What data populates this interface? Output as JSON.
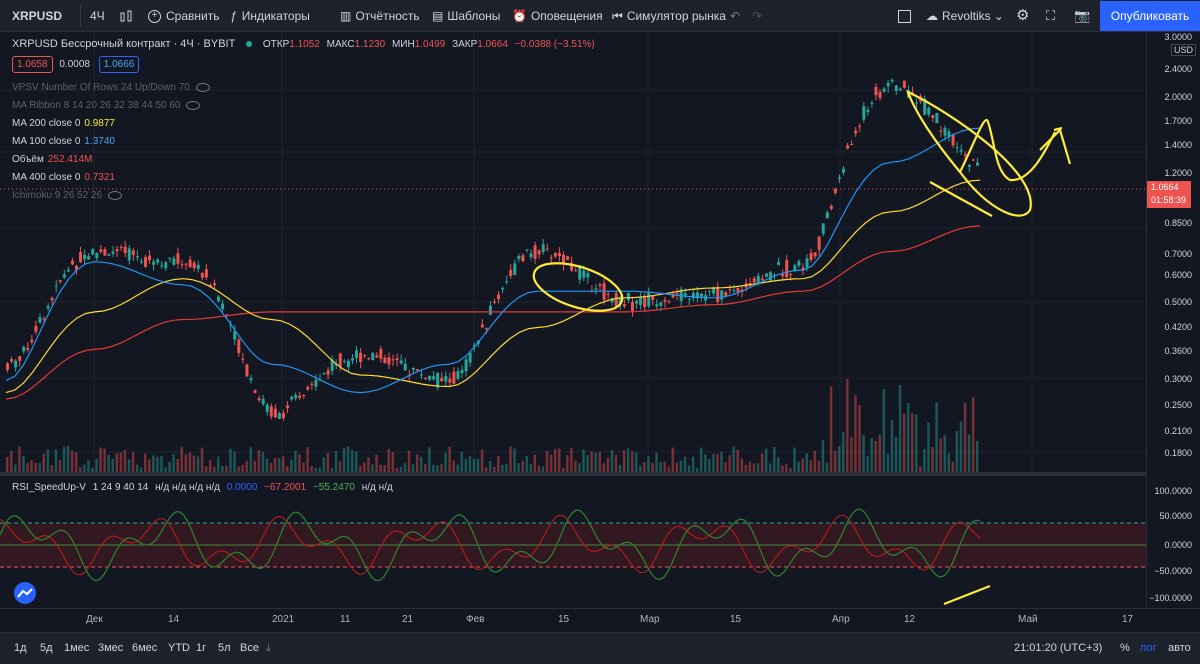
{
  "toolbar": {
    "symbol": "XRPUSD",
    "interval": "4Ч",
    "compare": "Сравнить",
    "indicators": "Индикаторы",
    "financials": "Отчётность",
    "templates": "Шаблоны",
    "alerts": "Оповещения",
    "replay": "Симулятор рынка",
    "layout_name": "Revoltiks",
    "publish": "Опубликовать"
  },
  "header": {
    "title": "XRPUSD Бессрочный контракт · 4Ч · BYBIT",
    "open_label": "ОТКР",
    "open": "1.1052",
    "high_label": "МАКС",
    "high": "1.1230",
    "low_label": "МИН",
    "low": "1.0499",
    "close_label": "ЗАКР",
    "close": "1.0664",
    "change": "−0.0388 (−3.51%)",
    "bid": "1.0658",
    "spread": "0.0008",
    "ask": "1.0666"
  },
  "indicators": [
    {
      "label": "VPSV Number Of Rows 24 Up/Down 70",
      "value": "",
      "hidden": true
    },
    {
      "label": "MA Ribbon 8 14 20 26 32 38 44 50 60",
      "value": "",
      "hidden": true
    },
    {
      "label": "MA 200 close 0",
      "value": "0.9877",
      "color": "#ffeb3b",
      "hidden": false
    },
    {
      "label": "MA 100 close 0",
      "value": "1.3740",
      "color": "#42a5f5",
      "hidden": false
    },
    {
      "label": "Объём",
      "value": "252.414M",
      "color": "#ef5350",
      "hidden": false
    },
    {
      "label": "MA 400 close 0",
      "value": "0.7321",
      "color": "#ef5350",
      "hidden": false
    },
    {
      "label": "Ichimoku 9 26 52 26",
      "value": "",
      "hidden": true
    }
  ],
  "price_axis": {
    "currency": "USD",
    "ticks": [
      "3.0000",
      "2.4000",
      "2.0000",
      "1.7000",
      "1.4000",
      "1.2000",
      "0.8500",
      "0.7000",
      "0.6000",
      "0.5000",
      "0.4200",
      "0.3600",
      "0.3000",
      "0.2500",
      "0.2100",
      "0.1800"
    ],
    "last_price": "1.0664",
    "countdown": "01:58:39"
  },
  "rsi": {
    "label": "RSI_SpeedUp-V",
    "params": "1 24 9 40 14",
    "na": "н/д н/д н/д н/д",
    "v1": "0.0000",
    "v2": "−67.2001",
    "v3": "−55.2470",
    "na2": "н/д н/д",
    "ticks": [
      "100.0000",
      "50.0000",
      "0.0000",
      "−50.0000",
      "−100.0000"
    ]
  },
  "time_axis": [
    "Дек",
    "14",
    "2021",
    "11",
    "21",
    "Фев",
    "15",
    "Мар",
    "15",
    "Апр",
    "12",
    "Май",
    "17"
  ],
  "bottom": {
    "ranges": [
      "1д",
      "5д",
      "1мес",
      "3мес",
      "6мес",
      "YTD",
      "1г",
      "5л",
      "Все"
    ],
    "clock": "21:01:20 (UTC+3)",
    "percent": "%",
    "log": "лог",
    "auto": "авто"
  },
  "chart_data": {
    "type": "line",
    "symbol": "XRPUSD",
    "y_scale": "log",
    "ylim": [
      0.16,
      3.0
    ],
    "x": [
      "Дек",
      "14",
      "2021",
      "11",
      "21",
      "Фев",
      "15",
      "Мар",
      "15",
      "Апр",
      "12",
      "Май"
    ],
    "series": [
      {
        "name": "MA 200 close 0",
        "values": [
          0.25,
          0.42,
          0.52,
          0.4,
          0.28,
          0.26,
          0.38,
          0.46,
          0.49,
          0.52,
          0.8,
          0.98
        ]
      },
      {
        "name": "MA 100 close 0",
        "values": [
          0.27,
          0.58,
          0.5,
          0.3,
          0.25,
          0.3,
          0.48,
          0.48,
          0.46,
          0.55,
          1.1,
          1.37
        ]
      },
      {
        "name": "MA 400 close 0",
        "values": [
          0.24,
          0.33,
          0.4,
          0.42,
          0.42,
          0.42,
          0.42,
          0.42,
          0.44,
          0.48,
          0.62,
          0.73
        ]
      },
      {
        "name": "XRPUSD",
        "values": [
          0.3,
          0.62,
          0.58,
          0.22,
          0.32,
          0.27,
          0.62,
          0.45,
          0.47,
          0.57,
          1.8,
          1.07
        ]
      }
    ]
  }
}
